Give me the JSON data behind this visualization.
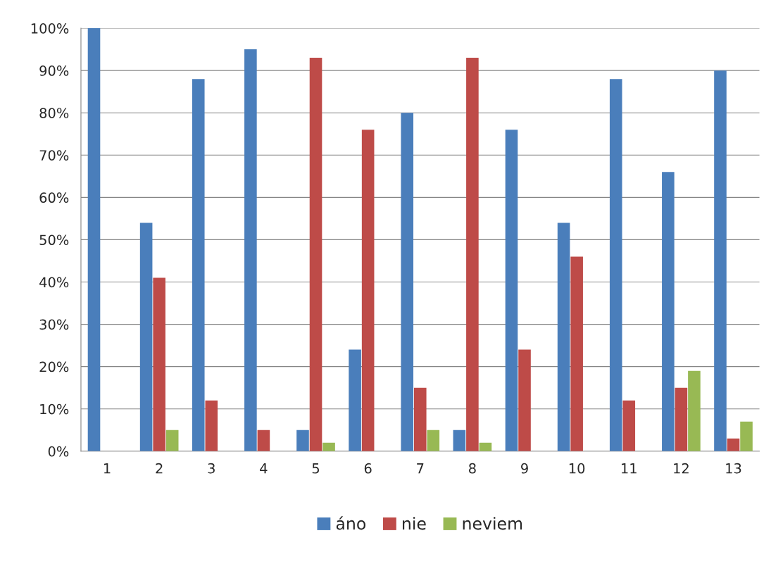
{
  "chart_data": {
    "type": "bar",
    "categories": [
      "1",
      "2",
      "3",
      "4",
      "5",
      "6",
      "7",
      "8",
      "9",
      "10",
      "11",
      "12",
      "13"
    ],
    "series": [
      {
        "name": "áno",
        "color": "#4a7ebb",
        "values": [
          100,
          54,
          88,
          95,
          5,
          24,
          80,
          5,
          76,
          54,
          88,
          66,
          90
        ]
      },
      {
        "name": "nie",
        "color": "#be4b48",
        "values": [
          null,
          41,
          12,
          5,
          93,
          76,
          15,
          93,
          24,
          46,
          12,
          15,
          3
        ]
      },
      {
        "name": "neviem",
        "color": "#98b954",
        "values": [
          null,
          5,
          null,
          null,
          2,
          null,
          5,
          2,
          null,
          null,
          null,
          19,
          7
        ]
      }
    ],
    "ylim": [
      0,
      100
    ],
    "yticks": [
      {
        "value": 0,
        "label": "0%"
      },
      {
        "value": 10,
        "label": "10%"
      },
      {
        "value": 20,
        "label": "20%"
      },
      {
        "value": 30,
        "label": "30%"
      },
      {
        "value": 40,
        "label": "40%"
      },
      {
        "value": 50,
        "label": "50%"
      },
      {
        "value": 60,
        "label": "60%"
      },
      {
        "value": 70,
        "label": "70%"
      },
      {
        "value": 80,
        "label": "80%"
      },
      {
        "value": 90,
        "label": "90%"
      },
      {
        "value": 100,
        "label": "100%"
      }
    ],
    "grid": "y",
    "legend": "bottom"
  }
}
